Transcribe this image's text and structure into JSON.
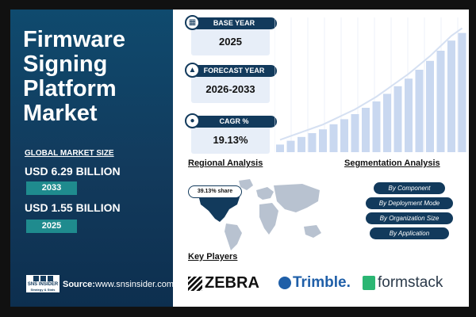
{
  "report": {
    "title_lines": [
      "Firmware",
      "Signing",
      "Platform",
      "Market"
    ],
    "market_size_label": "GLOBAL MARKET SIZE",
    "value_future": "USD 6.29 BILLION",
    "year_future": "2033",
    "value_base": "USD 1.55 BILLION",
    "year_base": "2025",
    "logo_text": "SNS INSIDER",
    "logo_sub": "Strategy & Stats",
    "source_label": "Source:",
    "source_url": "www.snsinsider.com"
  },
  "stats": {
    "base_year": {
      "label": "BASE YEAR",
      "value": "2025",
      "icon": "calendar-icon"
    },
    "forecast_year": {
      "label": "FORECAST YEAR",
      "value": "2026-2033",
      "icon": "chart-icon"
    },
    "cagr": {
      "label": "CAGR %",
      "value": "19.13%",
      "icon": "coins-icon"
    }
  },
  "growth_chart": {
    "bars": [
      0.06,
      0.09,
      0.12,
      0.15,
      0.18,
      0.22,
      0.26,
      0.3,
      0.35,
      0.4,
      0.46,
      0.52,
      0.58,
      0.65,
      0.72,
      0.8,
      0.88,
      0.94
    ],
    "color": "#c9d8f0"
  },
  "regional": {
    "title": "Regional Analysis",
    "share": "39.13% share"
  },
  "segmentation": {
    "title": "Segmentation Analysis",
    "items": [
      "By Component",
      "By Deployment Mode",
      "By Organization Size",
      "By Application"
    ]
  },
  "key_players": {
    "title": "Key Players",
    "companies": [
      "ZEBRA",
      "Trimble.",
      "formstack"
    ]
  },
  "colors": {
    "navy": "#123a5c",
    "teal": "#1f8b8e",
    "map_grey": "#b8c2d0",
    "map_highlight": "#123a5c"
  }
}
